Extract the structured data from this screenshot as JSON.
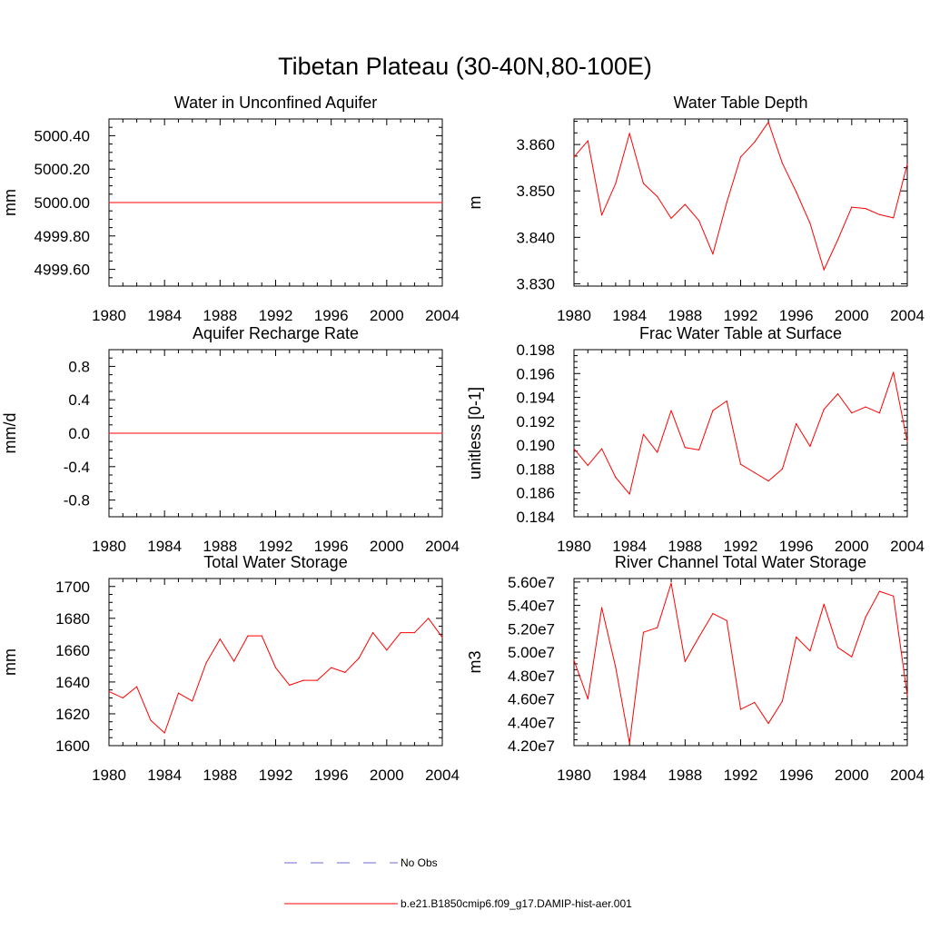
{
  "figure": {
    "title": "Tibetan Plateau (30-40N,80-100E)"
  },
  "legend": {
    "items": [
      {
        "label": "No Obs",
        "color": "#6b6bd6",
        "style": "dashed"
      },
      {
        "label": "b.e21.B1850cmip6.f09_g17.DAMIP-hist-aer.001",
        "color": "#ff0000",
        "style": "solid"
      }
    ]
  },
  "chart_data": [
    {
      "type": "line",
      "title": "Water in Unconfined Aquifer",
      "xlabel": "",
      "ylabel": "mm",
      "xlim": [
        1980,
        2004
      ],
      "ylim": [
        4999.5,
        5000.5
      ],
      "xticks": [
        1980,
        1984,
        1988,
        1992,
        1996,
        2000,
        2004
      ],
      "yticks": [
        4999.6,
        4999.8,
        5000.0,
        5000.2,
        5000.4
      ],
      "ytick_labels": [
        "4999.60",
        "4999.80",
        "5000.00",
        "5000.20",
        "5000.40"
      ],
      "x": [
        1980,
        2004
      ],
      "series": [
        {
          "color": "#ff0000",
          "values": [
            5000.0,
            5000.0
          ]
        }
      ]
    },
    {
      "type": "line",
      "title": "Water Table Depth",
      "xlabel": "",
      "ylabel": "m",
      "xlim": [
        1980,
        2004
      ],
      "ylim": [
        3.8295,
        3.8655
      ],
      "xticks": [
        1980,
        1984,
        1988,
        1992,
        1996,
        2000,
        2004
      ],
      "yticks": [
        3.83,
        3.84,
        3.85,
        3.86
      ],
      "ytick_labels": [
        "3.830",
        "3.840",
        "3.850",
        "3.860"
      ],
      "x": [
        1980,
        1981,
        1982,
        1983,
        1984,
        1985,
        1986,
        1987,
        1988,
        1989,
        1990,
        1991,
        1992,
        1993,
        1994,
        1995,
        1996,
        1997,
        1998,
        1999,
        2000,
        2001,
        2002,
        2003,
        2004
      ],
      "series": [
        {
          "color": "#ff0000",
          "values": [
            3.8573,
            3.8608,
            3.8448,
            3.8516,
            3.8624,
            3.8516,
            3.8488,
            3.8441,
            3.8471,
            3.8436,
            3.8364,
            3.8475,
            3.8573,
            3.8605,
            3.8648,
            3.856,
            3.8498,
            3.843,
            3.833,
            3.8395,
            3.8465,
            3.8462,
            3.8449,
            3.8442,
            3.8558
          ]
        }
      ]
    },
    {
      "type": "line",
      "title": "Aquifer Recharge Rate",
      "xlabel": "",
      "ylabel": "mm/d",
      "xlim": [
        1980,
        2004
      ],
      "ylim": [
        -1.0,
        1.0
      ],
      "xticks": [
        1980,
        1984,
        1988,
        1992,
        1996,
        2000,
        2004
      ],
      "yticks": [
        -0.8,
        -0.4,
        0.0,
        0.4,
        0.8
      ],
      "ytick_labels": [
        "-0.8",
        "-0.4",
        "0.0",
        "0.4",
        "0.8"
      ],
      "x": [
        1980,
        2004
      ],
      "series": [
        {
          "color": "#ff0000",
          "values": [
            0.0,
            0.0
          ]
        }
      ]
    },
    {
      "type": "line",
      "title": "Frac Water Table at Surface",
      "xlabel": "",
      "ylabel": "unitless [0-1]",
      "xlim": [
        1980,
        2004
      ],
      "ylim": [
        0.184,
        0.198
      ],
      "xticks": [
        1980,
        1984,
        1988,
        1992,
        1996,
        2000,
        2004
      ],
      "yticks": [
        0.184,
        0.186,
        0.188,
        0.19,
        0.192,
        0.194,
        0.196,
        0.198
      ],
      "ytick_labels": [
        "0.184",
        "0.186",
        "0.188",
        "0.190",
        "0.192",
        "0.194",
        "0.196",
        "0.198"
      ],
      "x": [
        1980,
        1981,
        1982,
        1983,
        1984,
        1985,
        1986,
        1987,
        1988,
        1989,
        1990,
        1991,
        1992,
        1993,
        1994,
        1995,
        1996,
        1997,
        1998,
        1999,
        2000,
        2001,
        2002,
        2003,
        2004
      ],
      "series": [
        {
          "color": "#ff0000",
          "values": [
            0.1897,
            0.1883,
            0.1897,
            0.1873,
            0.1859,
            0.1909,
            0.1894,
            0.1929,
            0.1898,
            0.1896,
            0.1929,
            0.1937,
            0.1884,
            0.1877,
            0.187,
            0.188,
            0.1918,
            0.1899,
            0.193,
            0.1943,
            0.1927,
            0.1932,
            0.1927,
            0.1961,
            0.1903
          ]
        }
      ]
    },
    {
      "type": "line",
      "title": "Total Water Storage",
      "xlabel": "",
      "ylabel": "mm",
      "xlim": [
        1980,
        2004
      ],
      "ylim": [
        1600,
        1705
      ],
      "xticks": [
        1980,
        1984,
        1988,
        1992,
        1996,
        2000,
        2004
      ],
      "yticks": [
        1600,
        1620,
        1640,
        1660,
        1680,
        1700
      ],
      "ytick_labels": [
        "1600",
        "1620",
        "1640",
        "1660",
        "1680",
        "1700"
      ],
      "x": [
        1980,
        1981,
        1982,
        1983,
        1984,
        1985,
        1986,
        1987,
        1988,
        1989,
        1990,
        1991,
        1992,
        1993,
        1994,
        1995,
        1996,
        1997,
        1998,
        1999,
        2000,
        2001,
        2002,
        2003,
        2004
      ],
      "series": [
        {
          "color": "#ff0000",
          "values": [
            1634,
            1630,
            1637,
            1616,
            1608,
            1633,
            1628,
            1652,
            1667,
            1653,
            1669,
            1669,
            1649,
            1638,
            1641,
            1641,
            1649,
            1646,
            1655,
            1671,
            1660,
            1671,
            1671,
            1680,
            1668
          ]
        }
      ]
    },
    {
      "type": "line",
      "title": "River Channel Total Water Storage",
      "xlabel": "",
      "ylabel": "m3",
      "xlim": [
        1980,
        2004
      ],
      "ylim": [
        42000000,
        56300000
      ],
      "xticks": [
        1980,
        1984,
        1988,
        1992,
        1996,
        2000,
        2004
      ],
      "yticks": [
        42000000,
        44000000,
        46000000,
        48000000,
        50000000,
        52000000,
        54000000,
        56000000
      ],
      "ytick_labels": [
        "4.20e7",
        "4.40e7",
        "4.60e7",
        "4.80e7",
        "5.00e7",
        "5.20e7",
        "5.40e7",
        "5.60e7"
      ],
      "x": [
        1980,
        1981,
        1982,
        1983,
        1984,
        1985,
        1986,
        1987,
        1988,
        1989,
        1990,
        1991,
        1992,
        1993,
        1994,
        1995,
        1996,
        1997,
        1998,
        1999,
        2000,
        2001,
        2002,
        2003,
        2004
      ],
      "series": [
        {
          "color": "#ff0000",
          "values": [
            49300000,
            46000000,
            53800000,
            48700000,
            42200000,
            51700000,
            52100000,
            55900000,
            49200000,
            51300000,
            53300000,
            52700000,
            45100000,
            45700000,
            43900000,
            45800000,
            51300000,
            50100000,
            54100000,
            50400000,
            49600000,
            53000000,
            55200000,
            54800000,
            46300000
          ]
        }
      ]
    }
  ]
}
